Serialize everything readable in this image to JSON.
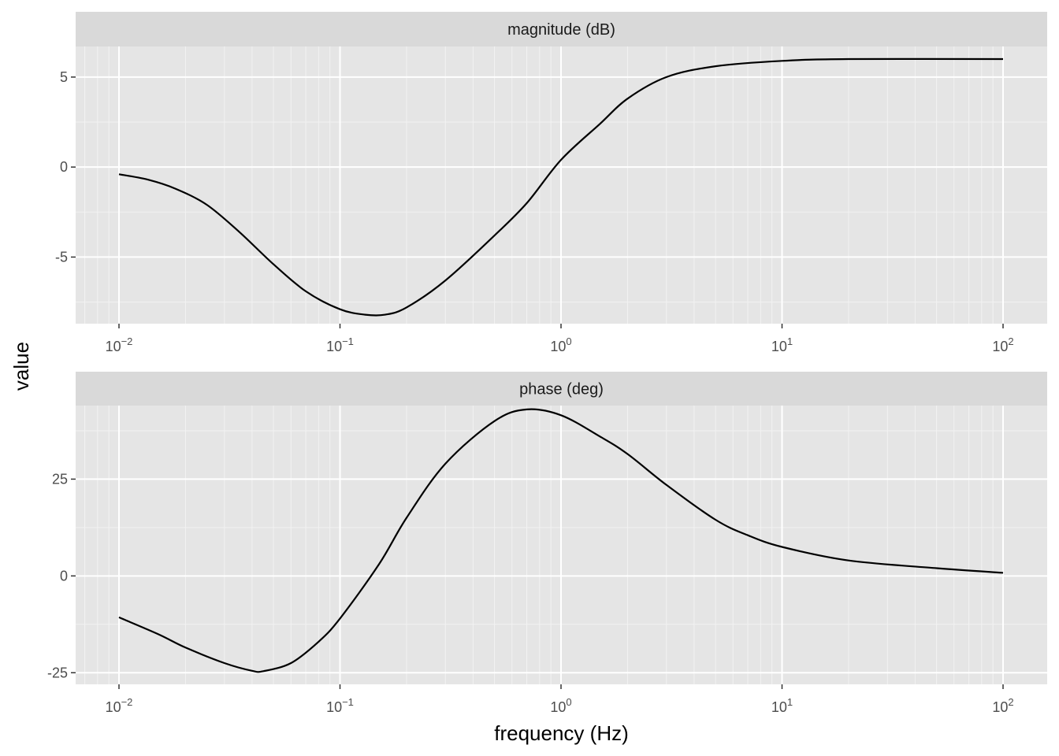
{
  "chart_data": {
    "type": "line",
    "layout": "faceted, 2 rows, shared x axis",
    "xlabel": "frequency (Hz)",
    "ylabel": "value",
    "x_scale": "log10",
    "xlim": [
      0.01,
      100
    ],
    "x_ticks": [
      {
        "value": 0.01,
        "base": "10",
        "exp": "−2"
      },
      {
        "value": 0.1,
        "base": "10",
        "exp": "−1"
      },
      {
        "value": 1,
        "base": "10",
        "exp": "0"
      },
      {
        "value": 10,
        "base": "10",
        "exp": "1"
      },
      {
        "value": 100,
        "base": "10",
        "exp": "2"
      }
    ],
    "grid": true,
    "background": "#e5e5e5",
    "strip_color": "#d9d9d9",
    "line_color": "#000000",
    "panels": [
      {
        "strip": "magnitude (dB)",
        "ylim": [
          -8.7,
          6.7
        ],
        "y_ticks": [
          {
            "value": -5,
            "label": "-5"
          },
          {
            "value": 0,
            "label": "0"
          },
          {
            "value": 5,
            "label": "5"
          }
        ],
        "y_minor": [
          -7.5,
          -2.5,
          2.5
        ],
        "series": [
          {
            "x": [
              0.01,
              0.0135,
              0.018,
              0.025,
              0.035,
              0.05,
              0.07,
              0.1,
              0.13,
              0.16,
              0.2,
              0.3,
              0.5,
              0.7,
              1,
              1.5,
              2,
              3,
              5,
              10,
              20,
              100
            ],
            "y": [
              -0.4,
              -0.7,
              -1.2,
              -2.1,
              -3.6,
              -5.4,
              -6.9,
              -7.9,
              -8.2,
              -8.2,
              -7.8,
              -6.3,
              -3.8,
              -2.0,
              0.4,
              2.4,
              3.8,
              5.0,
              5.6,
              5.9,
              6.0,
              6.0
            ]
          }
        ]
      },
      {
        "strip": "phase (deg)",
        "ylim": [
          -28,
          44
        ],
        "y_ticks": [
          {
            "value": -25,
            "label": "-25"
          },
          {
            "value": 0,
            "label": "0"
          },
          {
            "value": 25,
            "label": "25"
          }
        ],
        "y_minor": [
          -12.5,
          12.5,
          37.5
        ],
        "series": [
          {
            "x": [
              0.01,
              0.015,
              0.02,
              0.03,
              0.04,
              0.045,
              0.06,
              0.08,
              0.1,
              0.15,
              0.2,
              0.3,
              0.5,
              0.7,
              1,
              1.5,
              2,
              3,
              5,
              7,
              10,
              20,
              50,
              100
            ],
            "y": [
              -10.7,
              -15,
              -18.5,
              -22.5,
              -24.5,
              -24.6,
              -22.5,
              -17,
              -11,
              3,
              15,
              29,
              40,
              43,
              41.5,
              36,
              31.5,
              23.5,
              14.5,
              10.5,
              7.5,
              4,
              2,
              0.8
            ]
          }
        ]
      }
    ]
  }
}
